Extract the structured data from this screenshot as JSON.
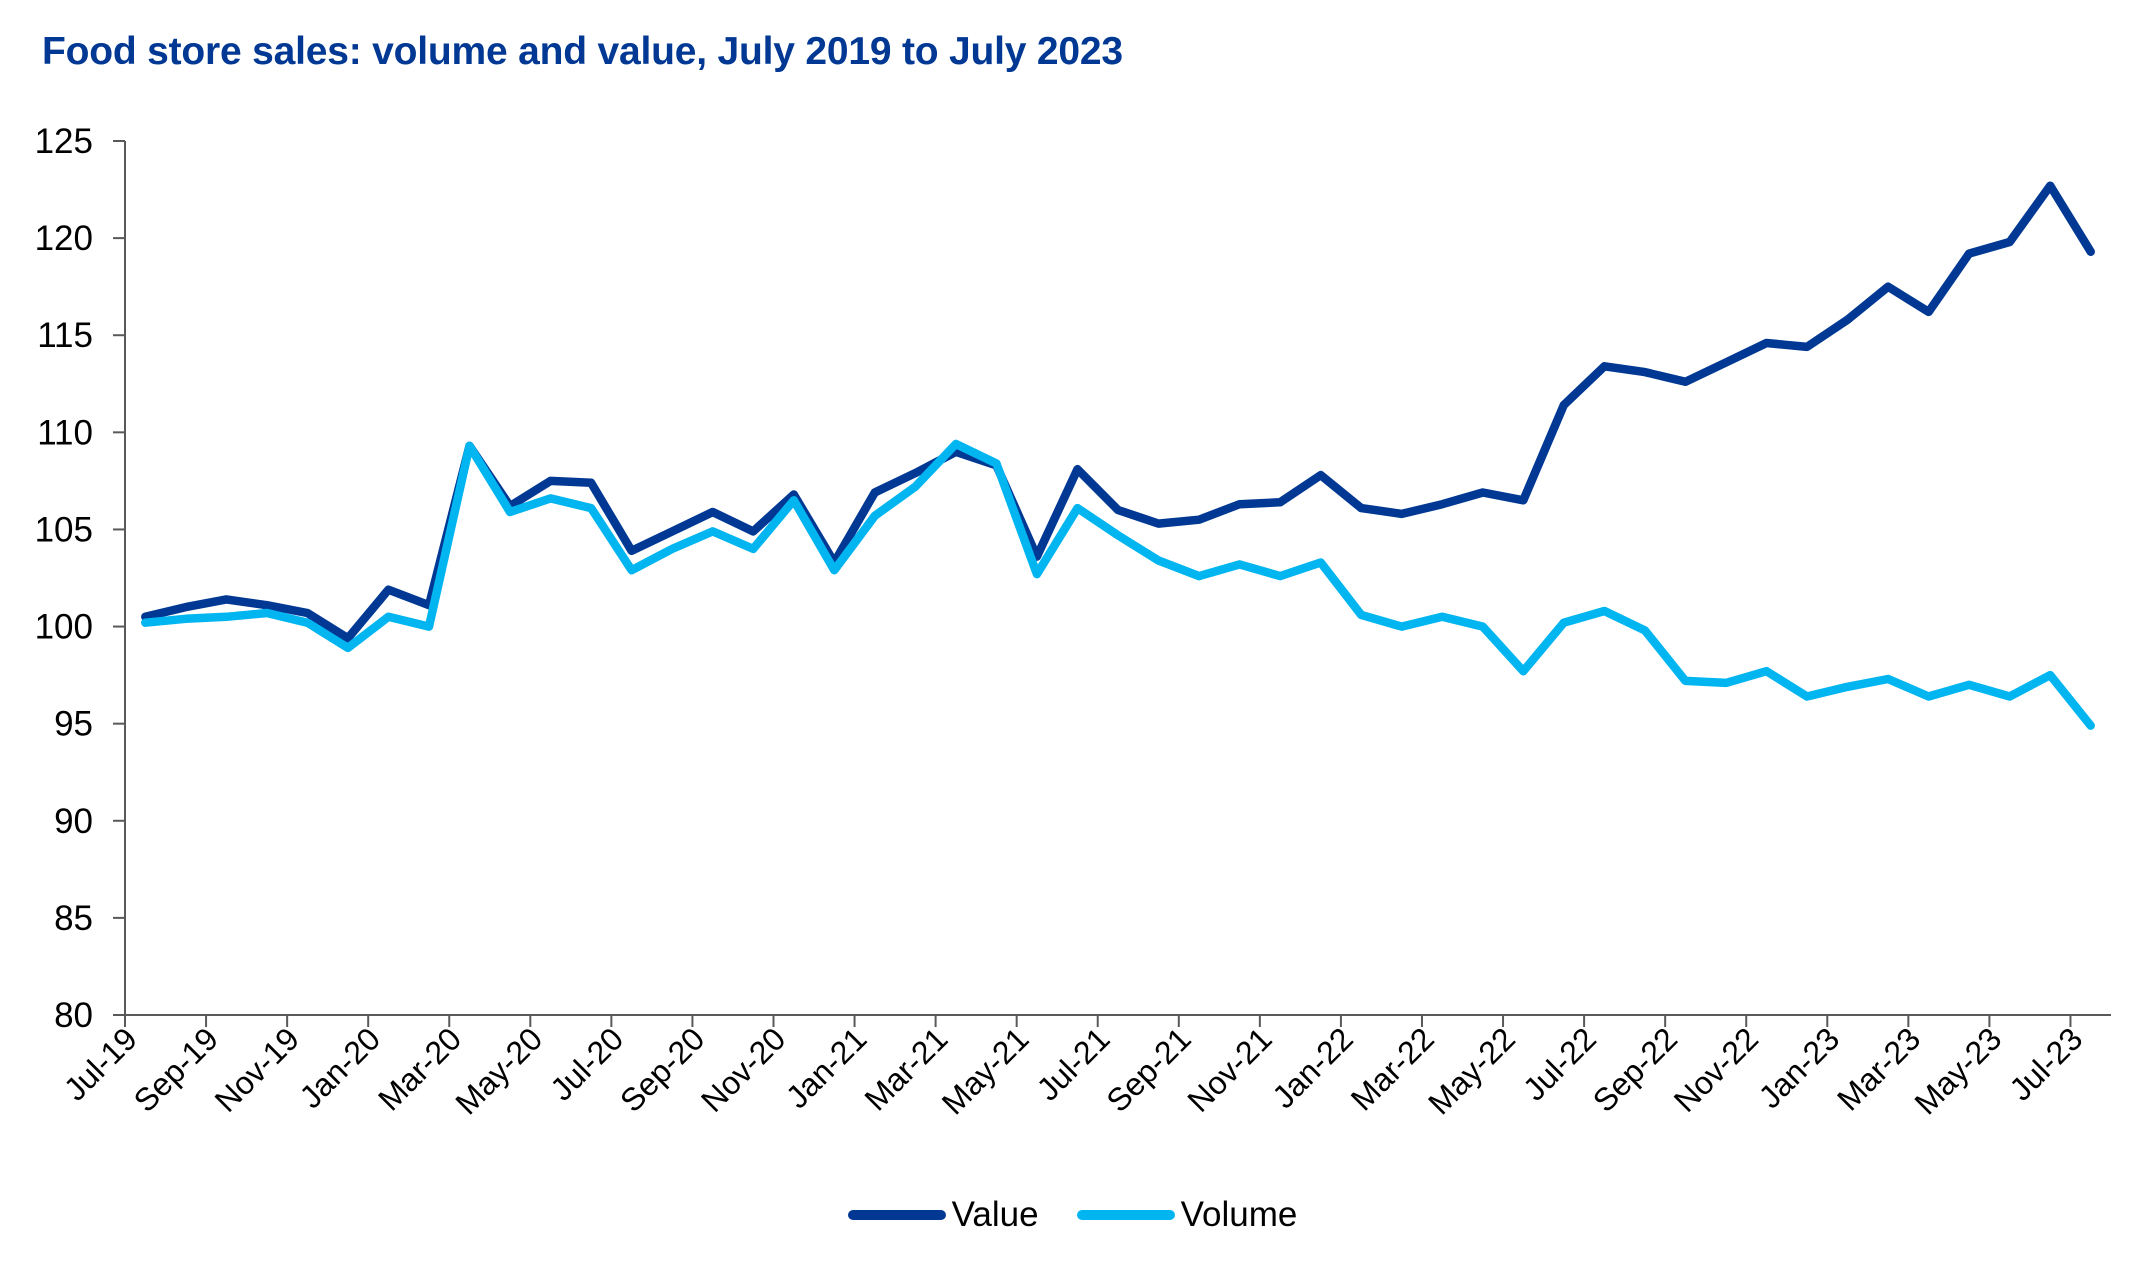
{
  "chart_data": {
    "type": "line",
    "title": "Food store sales: volume and value, July 2019 to July 2023",
    "xlabel": "",
    "ylabel": "",
    "ylim": [
      80,
      125
    ],
    "yticks": [
      80,
      85,
      90,
      95,
      100,
      105,
      110,
      115,
      120,
      125
    ],
    "grid": false,
    "legend_position": "bottom-center",
    "x": [
      "Jul-19",
      "Aug-19",
      "Sep-19",
      "Oct-19",
      "Nov-19",
      "Dec-19",
      "Jan-20",
      "Feb-20",
      "Mar-20",
      "Apr-20",
      "May-20",
      "Jun-20",
      "Jul-20",
      "Aug-20",
      "Sep-20",
      "Oct-20",
      "Nov-20",
      "Dec-20",
      "Jan-21",
      "Feb-21",
      "Mar-21",
      "Apr-21",
      "May-21",
      "Jun-21",
      "Jul-21",
      "Aug-21",
      "Sep-21",
      "Oct-21",
      "Nov-21",
      "Dec-21",
      "Jan-22",
      "Feb-22",
      "Mar-22",
      "Apr-22",
      "May-22",
      "Jun-22",
      "Jul-22",
      "Aug-22",
      "Sep-22",
      "Oct-22",
      "Nov-22",
      "Dec-22",
      "Jan-23",
      "Feb-23",
      "Mar-23",
      "Apr-23",
      "May-23",
      "Jun-23",
      "Jul-23"
    ],
    "xtick_labels": [
      "Jul-19",
      "Sep-19",
      "Nov-19",
      "Jan-20",
      "Mar-20",
      "May-20",
      "Jul-20",
      "Sep-20",
      "Nov-20",
      "Jan-21",
      "Mar-21",
      "May-21",
      "Jul-21",
      "Sep-21",
      "Nov-21",
      "Jan-22",
      "Mar-22",
      "May-22",
      "Jul-22",
      "Sep-22",
      "Nov-22",
      "Jan-23",
      "Mar-23",
      "May-23",
      "Jul-23"
    ],
    "series": [
      {
        "name": "Value",
        "color": "#003893",
        "values": [
          100.5,
          101.0,
          101.4,
          101.1,
          100.7,
          99.4,
          101.9,
          101.1,
          109.3,
          106.2,
          107.5,
          107.4,
          103.9,
          104.9,
          105.9,
          104.9,
          106.8,
          103.3,
          106.9,
          107.9,
          109.0,
          108.3,
          103.6,
          108.1,
          106.0,
          105.3,
          105.5,
          106.3,
          106.4,
          107.8,
          106.1,
          105.8,
          106.3,
          106.9,
          106.5,
          111.4,
          113.4,
          113.1,
          112.6,
          113.6,
          114.6,
          114.4,
          115.8,
          117.5,
          116.2,
          119.2,
          119.8,
          122.7,
          119.3
        ]
      },
      {
        "name": "Volume",
        "color": "#00B5F0",
        "values": [
          100.2,
          100.4,
          100.5,
          100.7,
          100.2,
          98.9,
          100.5,
          100.0,
          109.3,
          105.9,
          106.6,
          106.1,
          102.9,
          104.0,
          104.9,
          104.0,
          106.5,
          102.9,
          105.7,
          107.2,
          109.4,
          108.4,
          102.7,
          106.1,
          104.7,
          103.4,
          102.6,
          103.2,
          102.6,
          103.3,
          100.6,
          100.0,
          100.5,
          100.0,
          97.7,
          100.2,
          100.8,
          99.8,
          97.2,
          97.1,
          97.7,
          96.4,
          96.9,
          97.3,
          96.4,
          97.0,
          96.4,
          97.5,
          94.9
        ]
      }
    ]
  },
  "legend": [
    {
      "label": "Value",
      "color": "#003893"
    },
    {
      "label": "Volume",
      "color": "#00B5F0"
    }
  ]
}
